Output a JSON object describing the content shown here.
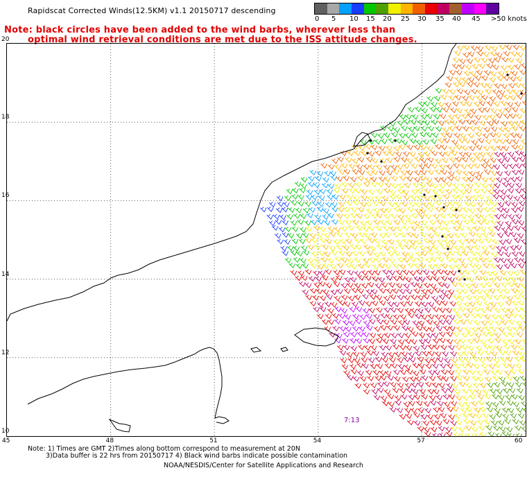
{
  "title": "Rapidscat Corrected Winds(12.5KM) v1.1 20150717 descending",
  "note": {
    "line1": "Note: black circles have been added to the wind barbs, wherever less than",
    "line2": "optimal wind retrieval conditions are met due to the ISS attitude changes."
  },
  "legend": {
    "colors": [
      "#606060",
      "#a8a8a8",
      "#00a0ff",
      "#1a3cff",
      "#00c800",
      "#4ea000",
      "#f0f000",
      "#ffb400",
      "#f06000",
      "#e80000",
      "#c00060",
      "#a06030",
      "#c000ff",
      "#ff00ff",
      "#6000a0"
    ],
    "labels": [
      "0",
      "5",
      "10",
      "15",
      "20",
      "25",
      "30",
      "35",
      "40",
      "45",
      ">50 knots"
    ],
    "color_names": [
      "gray",
      "light-gray",
      "cyan",
      "blue",
      "green",
      "dark-green",
      "yellow",
      "orange",
      "dark-orange",
      "red",
      "crimson",
      "brown",
      "purple",
      "magenta",
      "dark-purple"
    ]
  },
  "map": {
    "lat_ticks": [
      "20",
      "18",
      "16",
      "14",
      "12",
      "10"
    ],
    "lon_ticks": [
      "45",
      "48",
      "51",
      "54",
      "57",
      "60"
    ],
    "time_label": "7:13",
    "time_label_color": "#8000a0"
  },
  "footer": {
    "line1": "Note: 1) Times are GMT 2)Times along bottom correspond to measurement at 20N",
    "line2": "3)Data buffer is 22 hrs from 20150717 4) Black wind barbs indicate possible contamination",
    "line3": "NOAA/NESDIS/Center for Satellite Applications and Research"
  }
}
